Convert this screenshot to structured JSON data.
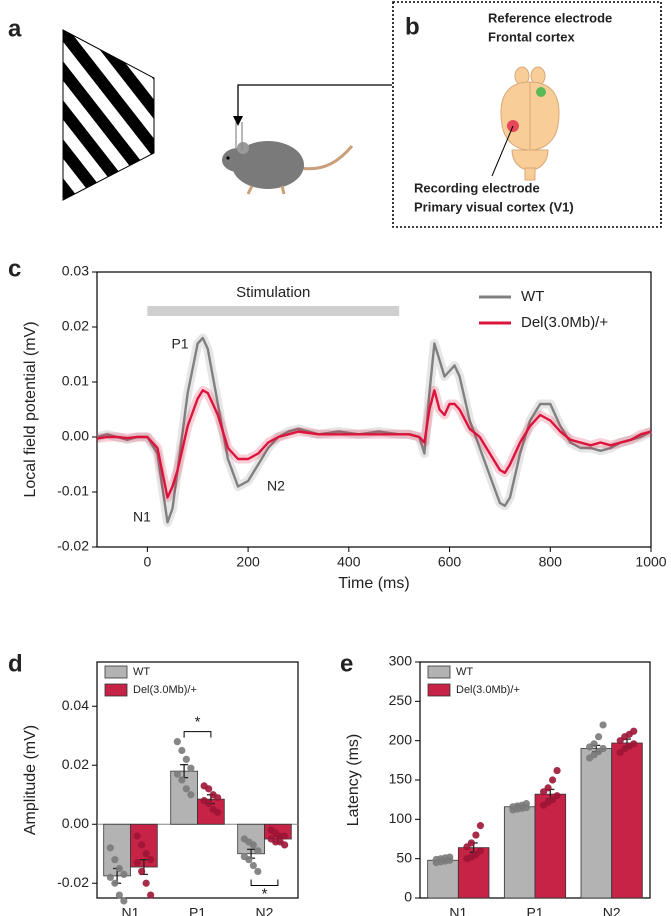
{
  "panel_labels": [
    "a",
    "b",
    "c",
    "d",
    "e"
  ],
  "electrodes": {
    "reference": [
      "Reference electrode",
      "Frontal cortex"
    ],
    "recording": [
      "Recording electrode",
      "Primary visual cortex (V1)"
    ]
  },
  "chart_data": [
    {
      "type": "line",
      "xlabel": "Time (ms)",
      "ylabel": "Local field potential (mV)",
      "x": [
        -100,
        -80,
        -60,
        -40,
        -20,
        0,
        20,
        40,
        50,
        60,
        80,
        100,
        110,
        120,
        140,
        160,
        180,
        200,
        220,
        240,
        260,
        280,
        300,
        340,
        380,
        420,
        460,
        500,
        520,
        540,
        550,
        560,
        570,
        580,
        590,
        600,
        610,
        620,
        640,
        660,
        680,
        700,
        710,
        720,
        740,
        760,
        780,
        800,
        820,
        840,
        860,
        880,
        900,
        920,
        940,
        960,
        980,
        1000
      ],
      "xlim": [
        -100,
        1000
      ],
      "xticks": [
        0,
        200,
        400,
        600,
        800,
        1000
      ],
      "ylim": [
        -0.02,
        0.03
      ],
      "yticks": [
        {
          "value": -0.02,
          "label": "-0.02"
        },
        {
          "value": -0.01,
          "label": "-0.01"
        },
        {
          "value": 0,
          "label": "0.00"
        },
        {
          "value": 0.01,
          "label": "0.01"
        },
        {
          "value": 0.02,
          "label": "0.02"
        },
        {
          "value": 0.03,
          "label": "0.03"
        }
      ],
      "legend": "upper right",
      "series": [
        {
          "name": "WT",
          "color": "#808080",
          "values": [
            0,
            0.0005,
            0,
            -0.0005,
            0,
            0,
            -0.003,
            -0.0155,
            -0.013,
            -0.006,
            0.008,
            0.017,
            0.018,
            0.016,
            0.006,
            -0.004,
            -0.009,
            -0.008,
            -0.005,
            -0.002,
            0,
            0.001,
            0.0015,
            0.0005,
            0.001,
            0.0005,
            0.001,
            0.0005,
            0.0005,
            0,
            -0.003,
            0.008,
            0.017,
            0.014,
            0.011,
            0.012,
            0.013,
            0.011,
            0.003,
            -0.002,
            -0.007,
            -0.012,
            -0.0125,
            -0.011,
            -0.003,
            0.003,
            0.006,
            0.006,
            0.002,
            -0.001,
            -0.002,
            -0.002,
            -0.0025,
            -0.002,
            -0.001,
            -0.0005,
            0,
            0.001
          ]
        },
        {
          "name": "Del(3.0Mb)/+",
          "color": "#dc143c",
          "values": [
            -0.0003,
            0,
            0,
            -0.0002,
            0,
            0,
            -0.002,
            -0.011,
            -0.009,
            -0.006,
            0.002,
            0.007,
            0.0085,
            0.008,
            0.004,
            -0.002,
            -0.004,
            -0.004,
            -0.003,
            -0.001,
            0,
            0.0005,
            0.001,
            0.0005,
            0.0005,
            0.0005,
            0.0005,
            0.0005,
            0.0005,
            0,
            -0.001,
            0.005,
            0.0085,
            0.005,
            0.004,
            0.006,
            0.006,
            0.005,
            0.0015,
            0,
            -0.003,
            -0.006,
            -0.0065,
            -0.005,
            -0.001,
            0.002,
            0.004,
            0.003,
            0.001,
            -0.0005,
            -0.001,
            -0.0015,
            -0.001,
            -0.0015,
            -0.001,
            -0.0005,
            0.0005,
            0.001
          ]
        }
      ],
      "stimulation": {
        "label": "Stimulation",
        "start": 0,
        "end": 500
      },
      "annotations": [
        "N1",
        "P1",
        "N2"
      ]
    },
    {
      "type": "bar",
      "ylabel": "Amplitude (mV)",
      "categories": [
        "N1",
        "P1",
        "N2"
      ],
      "ylim": [
        -0.025,
        0.055
      ],
      "yticks": [
        {
          "value": -0.02,
          "label": "-0.02"
        },
        {
          "value": 0,
          "label": "0.00"
        },
        {
          "value": 0.02,
          "label": "0.02"
        },
        {
          "value": 0.04,
          "label": "0.04"
        }
      ],
      "legend": "upper left",
      "series": [
        {
          "name": "WT",
          "color": "#b3b3b3",
          "point_color": "#7a7a7a",
          "values": [
            -0.0175,
            0.018,
            -0.01
          ],
          "errors": [
            0.0025,
            0.0022,
            0.0015
          ],
          "points": [
            [
              -0.008,
              -0.012,
              -0.015,
              -0.017,
              -0.018,
              -0.02,
              -0.024,
              -0.026
            ],
            [
              0.028,
              0.025,
              0.022,
              0.019,
              0.017,
              0.015,
              0.012,
              0.01
            ],
            [
              -0.005,
              -0.006,
              -0.007,
              -0.009,
              -0.011,
              -0.012,
              -0.014,
              -0.016
            ]
          ]
        },
        {
          "name": "Del(3.0Mb)/+",
          "color": "#c62346",
          "point_color": "#9c1535",
          "values": [
            -0.0145,
            0.0085,
            -0.005
          ],
          "errors": [
            0.0025,
            0.0015,
            0.001
          ],
          "points": [
            [
              -0.004,
              -0.007,
              -0.01,
              -0.012,
              -0.013,
              -0.016,
              -0.02,
              -0.024
            ],
            [
              0.013,
              0.012,
              0.01,
              0.009,
              0.008,
              0.007,
              0.005,
              0.004
            ],
            [
              -0.002,
              -0.003,
              -0.004,
              -0.004,
              -0.005,
              -0.006,
              -0.006,
              -0.007
            ]
          ]
        }
      ],
      "significance": [
        "*",
        "*"
      ]
    },
    {
      "type": "bar",
      "ylabel": "Latency (ms)",
      "categories": [
        "N1",
        "P1",
        "N2"
      ],
      "ylim": [
        0,
        300
      ],
      "yticks": [
        0,
        50,
        100,
        150,
        200,
        250,
        300
      ],
      "legend": "upper left",
      "series": [
        {
          "name": "WT",
          "color": "#b3b3b3",
          "point_color": "#7a7a7a",
          "values": [
            48,
            116,
            190
          ],
          "errors": [
            1.5,
            2,
            4
          ],
          "points": [
            [
              45,
              46,
              47,
              48,
              49,
              50,
              51,
              52
            ],
            [
              112,
              113,
              114,
              115,
              116,
              117,
              118,
              120
            ],
            [
              178,
              182,
              186,
              190,
              192,
              196,
              205,
              220
            ]
          ]
        },
        {
          "name": "Del(3.0Mb)/+",
          "color": "#c62346",
          "point_color": "#9c1535",
          "values": [
            64,
            132,
            197
          ],
          "errors": [
            6,
            6,
            5
          ],
          "points": [
            [
              50,
              52,
              55,
              60,
              65,
              70,
              80,
              92
            ],
            [
              118,
              122,
              125,
              130,
              135,
              140,
              150,
              162
            ],
            [
              185,
              190,
              193,
              196,
              200,
              205,
              208,
              212
            ]
          ]
        }
      ]
    }
  ]
}
